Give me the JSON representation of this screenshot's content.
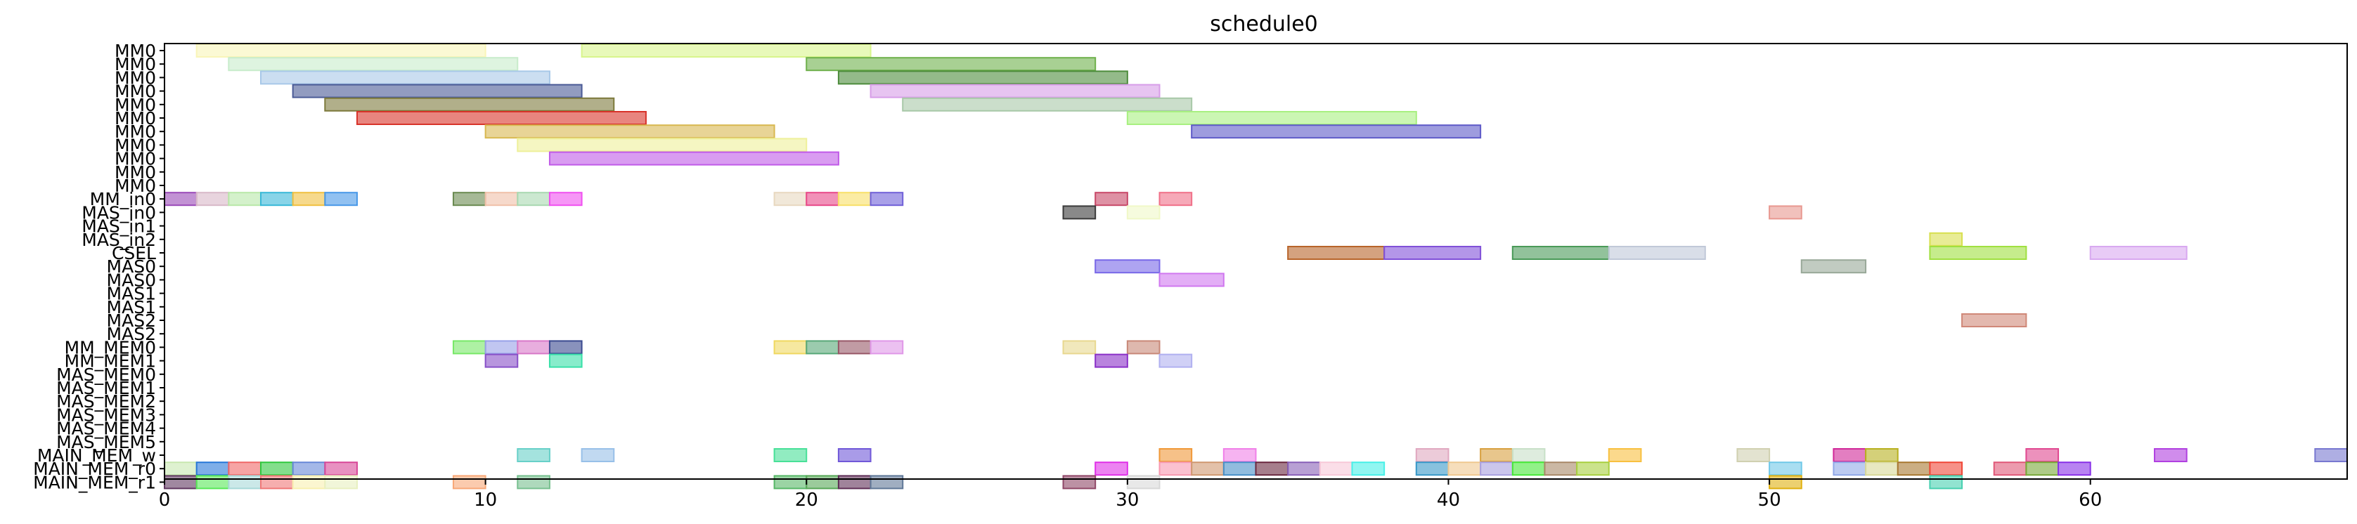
{
  "chart_data": {
    "type": "bar",
    "orientation": "horizontal-gantt",
    "title": "schedule0",
    "xlabel": "",
    "ylabel": "",
    "xlim": [
      0,
      68
    ],
    "x_ticks": [
      0,
      10,
      20,
      30,
      40,
      50,
      60
    ],
    "grid": false,
    "legend": "none",
    "rows": [
      "MM0",
      "MM0",
      "MM0",
      "MM0",
      "MM0",
      "MM0",
      "MM0",
      "MM0",
      "MM0",
      "MM0",
      "MM0",
      "MM_in0",
      "MAS_in0",
      "MAS_in1",
      "MAS_in2",
      "CSEL",
      "MAS0",
      "MAS0",
      "MAS1",
      "MAS1",
      "MAS2",
      "MAS2",
      "MM_MEM0",
      "MM_MEM1",
      "MAS_MEM0",
      "MAS_MEM1",
      "MAS_MEM2",
      "MAS_MEM3",
      "MAS_MEM4",
      "MAS_MEM5",
      "MAIN_MEM_w",
      "MAIN_MEM_r0",
      "MAIN_MEM_r1"
    ],
    "bars": [
      {
        "row": 0,
        "start": 1,
        "end": 10,
        "color": "#f9f5b8"
      },
      {
        "row": 0,
        "start": 13,
        "end": 22,
        "color": "#d8f58c"
      },
      {
        "row": 1,
        "start": 2,
        "end": 11,
        "color": "#c8eccb"
      },
      {
        "row": 1,
        "start": 20,
        "end": 29,
        "color": "#6eb04b"
      },
      {
        "row": 2,
        "start": 3,
        "end": 12,
        "color": "#a8c8e8"
      },
      {
        "row": 2,
        "start": 21,
        "end": 30,
        "color": "#4d8c3c"
      },
      {
        "row": 3,
        "start": 4,
        "end": 13,
        "color": "#4a5a96"
      },
      {
        "row": 3,
        "start": 22,
        "end": 31,
        "color": "#d79de8"
      },
      {
        "row": 4,
        "start": 5,
        "end": 14,
        "color": "#7d7a3c"
      },
      {
        "row": 4,
        "start": 23,
        "end": 32,
        "color": "#a8c8a8"
      },
      {
        "row": 5,
        "start": 6,
        "end": 15,
        "color": "#d8332a"
      },
      {
        "row": 5,
        "start": 30,
        "end": 39,
        "color": "#a8f080"
      },
      {
        "row": 6,
        "start": 10,
        "end": 19,
        "color": "#d8b850"
      },
      {
        "row": 6,
        "start": 32,
        "end": 41,
        "color": "#5e5ac8"
      },
      {
        "row": 7,
        "start": 11,
        "end": 20,
        "color": "#eef09a"
      },
      {
        "row": 8,
        "start": 12,
        "end": 21,
        "color": "#c05ae8"
      },
      {
        "row": 11,
        "start": 0,
        "end": 1,
        "color": "#9a4ab8"
      },
      {
        "row": 11,
        "start": 1,
        "end": 2,
        "color": "#d8b8c8"
      },
      {
        "row": 11,
        "start": 2,
        "end": 3,
        "color": "#b8e8a8"
      },
      {
        "row": 11,
        "start": 3,
        "end": 4,
        "color": "#38b8d8"
      },
      {
        "row": 11,
        "start": 4,
        "end": 5,
        "color": "#f0c040"
      },
      {
        "row": 11,
        "start": 5,
        "end": 6,
        "color": "#4898e8"
      },
      {
        "row": 11,
        "start": 9,
        "end": 10,
        "color": "#6a8a50"
      },
      {
        "row": 11,
        "start": 10,
        "end": 11,
        "color": "#f0c0a8"
      },
      {
        "row": 11,
        "start": 11,
        "end": 12,
        "color": "#a8d8b0"
      },
      {
        "row": 11,
        "start": 12,
        "end": 13,
        "color": "#f050f0"
      },
      {
        "row": 11,
        "start": 19,
        "end": 20,
        "color": "#e8d8c0"
      },
      {
        "row": 11,
        "start": 20,
        "end": 21,
        "color": "#e84888"
      },
      {
        "row": 11,
        "start": 21,
        "end": 22,
        "color": "#f8e068"
      },
      {
        "row": 11,
        "start": 22,
        "end": 23,
        "color": "#7060d8"
      },
      {
        "row": 11,
        "start": 29,
        "end": 30,
        "color": "#c84868"
      },
      {
        "row": 11,
        "start": 31,
        "end": 32,
        "color": "#f07088"
      },
      {
        "row": 12,
        "start": 28,
        "end": 29,
        "color": "#3a3a3a"
      },
      {
        "row": 12,
        "start": 30,
        "end": 31,
        "color": "#f0f8c8"
      },
      {
        "row": 12,
        "start": 50,
        "end": 51,
        "color": "#e89890"
      },
      {
        "row": 14,
        "start": 55,
        "end": 56,
        "color": "#d8e050"
      },
      {
        "row": 15,
        "start": 35,
        "end": 38,
        "color": "#b8642a"
      },
      {
        "row": 15,
        "start": 38,
        "end": 41,
        "color": "#8050d8"
      },
      {
        "row": 15,
        "start": 42,
        "end": 45,
        "color": "#4a9a58"
      },
      {
        "row": 15,
        "start": 45,
        "end": 48,
        "color": "#c0c8d8"
      },
      {
        "row": 15,
        "start": 55,
        "end": 58,
        "color": "#a0e040"
      },
      {
        "row": 15,
        "start": 60,
        "end": 63,
        "color": "#d8a8f0"
      },
      {
        "row": 16,
        "start": 29,
        "end": 31,
        "color": "#7868e8"
      },
      {
        "row": 16,
        "start": 51,
        "end": 53,
        "color": "#98a898"
      },
      {
        "row": 17,
        "start": 31,
        "end": 33,
        "color": "#d078f0"
      },
      {
        "row": 20,
        "start": 56,
        "end": 58,
        "color": "#d08878"
      },
      {
        "row": 22,
        "start": 9,
        "end": 10,
        "color": "#78e868"
      },
      {
        "row": 22,
        "start": 10,
        "end": 11,
        "color": "#98a0e8"
      },
      {
        "row": 22,
        "start": 11,
        "end": 12,
        "color": "#d878c8"
      },
      {
        "row": 22,
        "start": 12,
        "end": 13,
        "color": "#3a4a90"
      },
      {
        "row": 22,
        "start": 19,
        "end": 20,
        "color": "#f0d860"
      },
      {
        "row": 22,
        "start": 20,
        "end": 21,
        "color": "#58a878"
      },
      {
        "row": 22,
        "start": 21,
        "end": 22,
        "color": "#985868"
      },
      {
        "row": 22,
        "start": 22,
        "end": 23,
        "color": "#e098e8"
      },
      {
        "row": 22,
        "start": 28,
        "end": 29,
        "color": "#e8d890"
      },
      {
        "row": 22,
        "start": 30,
        "end": 31,
        "color": "#c88878"
      },
      {
        "row": 23,
        "start": 10,
        "end": 11,
        "color": "#8850c8"
      },
      {
        "row": 23,
        "start": 12,
        "end": 13,
        "color": "#38e0a8"
      },
      {
        "row": 23,
        "start": 29,
        "end": 30,
        "color": "#8a30c8"
      },
      {
        "row": 23,
        "start": 31,
        "end": 32,
        "color": "#b0b0f0"
      },
      {
        "row": 30,
        "start": 11,
        "end": 12,
        "color": "#68d0c8"
      },
      {
        "row": 30,
        "start": 13,
        "end": 14,
        "color": "#98c0e8"
      },
      {
        "row": 30,
        "start": 19,
        "end": 20,
        "color": "#48e098"
      },
      {
        "row": 30,
        "start": 21,
        "end": 22,
        "color": "#7058d8"
      },
      {
        "row": 30,
        "start": 31,
        "end": 32,
        "color": "#f09838"
      },
      {
        "row": 30,
        "start": 33,
        "end": 34,
        "color": "#f080e8"
      },
      {
        "row": 30,
        "start": 39,
        "end": 40,
        "color": "#e0a8c0"
      },
      {
        "row": 30,
        "start": 41,
        "end": 42,
        "color": "#d8a040"
      },
      {
        "row": 30,
        "start": 42,
        "end": 43,
        "color": "#c8e0c8"
      },
      {
        "row": 30,
        "start": 45,
        "end": 46,
        "color": "#f8c040"
      },
      {
        "row": 30,
        "start": 49,
        "end": 50,
        "color": "#d0d0b0"
      },
      {
        "row": 30,
        "start": 52,
        "end": 53,
        "color": "#d02898"
      },
      {
        "row": 30,
        "start": 53,
        "end": 54,
        "color": "#b8b020"
      },
      {
        "row": 30,
        "start": 58,
        "end": 59,
        "color": "#e04890"
      },
      {
        "row": 30,
        "start": 62,
        "end": 63,
        "color": "#b040e0"
      },
      {
        "row": 30,
        "start": 67,
        "end": 68,
        "color": "#7878d0"
      },
      {
        "row": 31,
        "start": 0,
        "end": 1,
        "color": "#c8e8b0"
      },
      {
        "row": 31,
        "start": 1,
        "end": 2,
        "color": "#2878d8"
      },
      {
        "row": 31,
        "start": 2,
        "end": 3,
        "color": "#f06868"
      },
      {
        "row": 31,
        "start": 3,
        "end": 4,
        "color": "#30c840"
      },
      {
        "row": 31,
        "start": 4,
        "end": 5,
        "color": "#6888d8"
      },
      {
        "row": 31,
        "start": 5,
        "end": 6,
        "color": "#d84898"
      },
      {
        "row": 31,
        "start": 29,
        "end": 30,
        "color": "#e030e8"
      },
      {
        "row": 31,
        "start": 31,
        "end": 32,
        "color": "#f898b0"
      },
      {
        "row": 31,
        "start": 32,
        "end": 33,
        "color": "#d09870"
      },
      {
        "row": 31,
        "start": 33,
        "end": 34,
        "color": "#4890c8"
      },
      {
        "row": 31,
        "start": 34,
        "end": 35,
        "color": "#6a2840"
      },
      {
        "row": 31,
        "start": 35,
        "end": 36,
        "color": "#8860b8"
      },
      {
        "row": 31,
        "start": 36,
        "end": 37,
        "color": "#f8c8d8"
      },
      {
        "row": 31,
        "start": 37,
        "end": 38,
        "color": "#48f0e8"
      },
      {
        "row": 31,
        "start": 39,
        "end": 40,
        "color": "#3898c8"
      },
      {
        "row": 31,
        "start": 40,
        "end": 41,
        "color": "#f0c890"
      },
      {
        "row": 31,
        "start": 41,
        "end": 42,
        "color": "#a8a0e0"
      },
      {
        "row": 31,
        "start": 42,
        "end": 43,
        "color": "#48e838"
      },
      {
        "row": 31,
        "start": 43,
        "end": 44,
        "color": "#a88868"
      },
      {
        "row": 31,
        "start": 44,
        "end": 45,
        "color": "#a8d040"
      },
      {
        "row": 31,
        "start": 50,
        "end": 51,
        "color": "#70c8e8"
      },
      {
        "row": 31,
        "start": 52,
        "end": 53,
        "color": "#90a8e8"
      },
      {
        "row": 31,
        "start": 53,
        "end": 54,
        "color": "#d8d898"
      },
      {
        "row": 31,
        "start": 54,
        "end": 55,
        "color": "#a87830"
      },
      {
        "row": 31,
        "start": 55,
        "end": 56,
        "color": "#f04838"
      },
      {
        "row": 31,
        "start": 57,
        "end": 58,
        "color": "#e05878"
      },
      {
        "row": 31,
        "start": 58,
        "end": 59,
        "color": "#78a838"
      },
      {
        "row": 31,
        "start": 59,
        "end": 60,
        "color": "#8830e8"
      },
      {
        "row": 32,
        "start": 0,
        "end": 1,
        "color": "#603860"
      },
      {
        "row": 32,
        "start": 1,
        "end": 2,
        "color": "#58e858"
      },
      {
        "row": 32,
        "start": 2,
        "end": 3,
        "color": "#a8d8d8"
      },
      {
        "row": 32,
        "start": 3,
        "end": 4,
        "color": "#f07878"
      },
      {
        "row": 32,
        "start": 4,
        "end": 5,
        "color": "#f8f0b0"
      },
      {
        "row": 32,
        "start": 5,
        "end": 6,
        "color": "#e8f0c0"
      },
      {
        "row": 32,
        "start": 9,
        "end": 10,
        "color": "#f8a878"
      },
      {
        "row": 32,
        "start": 11,
        "end": 12,
        "color": "#78c090"
      },
      {
        "row": 32,
        "start": 19,
        "end": 20,
        "color": "#58b868"
      },
      {
        "row": 32,
        "start": 20,
        "end": 21,
        "color": "#58a858"
      },
      {
        "row": 32,
        "start": 21,
        "end": 22,
        "color": "#603058"
      },
      {
        "row": 32,
        "start": 22,
        "end": 23,
        "color": "#607898"
      },
      {
        "row": 32,
        "start": 28,
        "end": 29,
        "color": "#904868"
      },
      {
        "row": 32,
        "start": 30,
        "end": 31,
        "color": "#d8d8d8"
      },
      {
        "row": 32,
        "start": 50,
        "end": 51,
        "color": "#e0b010"
      },
      {
        "row": 32,
        "start": 55,
        "end": 56,
        "color": "#48d0b0"
      }
    ]
  }
}
